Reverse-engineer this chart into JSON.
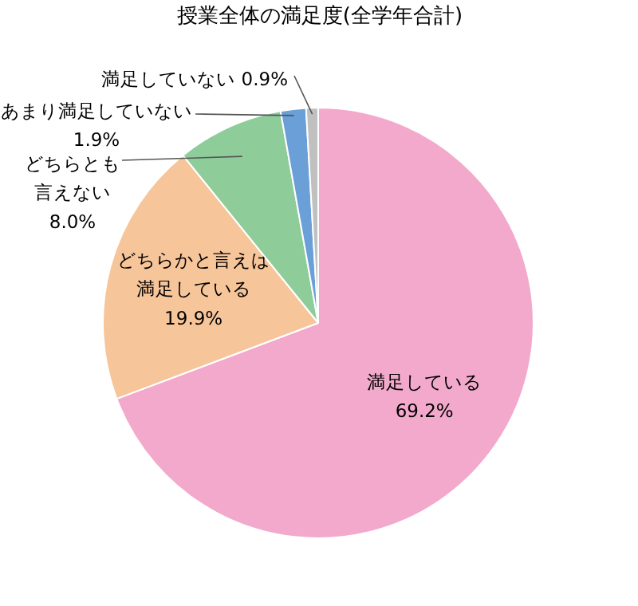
{
  "chart_data": {
    "type": "pie",
    "title": "授業全体の満足度(全学年合計)",
    "categories": [
      "満足している",
      "どちらかと言えば満足している",
      "どちらとも言えない",
      "あまり満足していない",
      "満足していない"
    ],
    "values": [
      69.2,
      19.9,
      8.0,
      1.9,
      0.9
    ],
    "value_labels": [
      "69.2%",
      "19.9%",
      "8.0%",
      "1.9%",
      "0.9%"
    ],
    "colors": [
      "#f2a9cb",
      "#f7c59a",
      "#8ecc9a",
      "#6a9fd8",
      "#c0c0c0"
    ]
  }
}
